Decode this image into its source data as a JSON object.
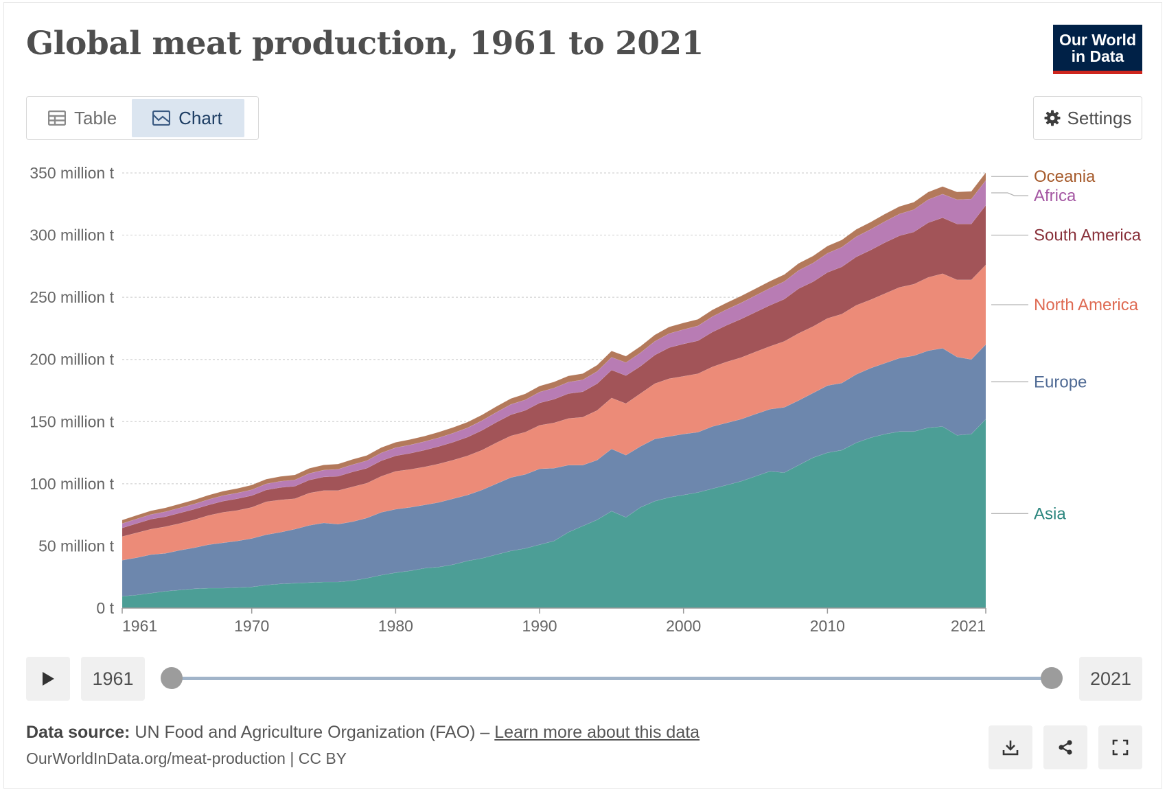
{
  "title": "Global meat production, 1961 to 2021",
  "logo": {
    "line1": "Our World",
    "line2": "in Data"
  },
  "tabs": [
    {
      "label": "Table",
      "icon": "table-icon"
    },
    {
      "label": "Chart",
      "icon": "chart-icon",
      "active": true
    }
  ],
  "settings_label": "Settings",
  "timeline": {
    "start": "1961",
    "end": "2021",
    "play_icon": "play-icon"
  },
  "footer": {
    "source_bold": "Data source:",
    "source_text": "UN Food and Agriculture Organization (FAO) –",
    "learn_more": "Learn more about this data",
    "url": "OurWorldInData.org/meat-production | CC BY"
  },
  "colors": {
    "Asia": "#4c9e96",
    "Europe": "#6d87ad",
    "North America": "#ec8b78",
    "South America": "#a25458",
    "Africa": "#b87cb4",
    "Oceania": "#b3795b"
  },
  "label_colors": {
    "Asia": "#2a857d",
    "Europe": "#4f6a94",
    "North America": "#de6a52",
    "South America": "#883039",
    "Africa": "#a456a2",
    "Oceania": "#a65b2c"
  },
  "chart_data": {
    "type": "area",
    "stacked": true,
    "title": "Global meat production, 1961 to 2021",
    "y_unit": "t",
    "ylim": [
      0,
      350000000
    ],
    "y_ticks": [
      {
        "value": 0,
        "label": "0 t"
      },
      {
        "value": 50000000,
        "label": "50 million t"
      },
      {
        "value": 100000000,
        "label": "100 million t"
      },
      {
        "value": 150000000,
        "label": "150 million t"
      },
      {
        "value": 200000000,
        "label": "200 million t"
      },
      {
        "value": 250000000,
        "label": "250 million t"
      },
      {
        "value": 300000000,
        "label": "300 million t"
      },
      {
        "value": 350000000,
        "label": "350 million t"
      }
    ],
    "x_ticks": [
      1961,
      1970,
      1980,
      1990,
      2000,
      2010,
      2021
    ],
    "xlim": [
      1961,
      2021
    ],
    "legend_position": "right",
    "x": [
      1961,
      1962,
      1963,
      1964,
      1965,
      1966,
      1967,
      1968,
      1969,
      1970,
      1971,
      1972,
      1973,
      1974,
      1975,
      1976,
      1977,
      1978,
      1979,
      1980,
      1981,
      1982,
      1983,
      1984,
      1985,
      1986,
      1987,
      1988,
      1989,
      1990,
      1991,
      1992,
      1993,
      1994,
      1995,
      1996,
      1997,
      1998,
      1999,
      2000,
      2001,
      2002,
      2003,
      2004,
      2005,
      2006,
      2007,
      2008,
      2009,
      2010,
      2011,
      2012,
      2013,
      2014,
      2015,
      2016,
      2017,
      2018,
      2019,
      2020,
      2021
    ],
    "series": [
      {
        "name": "Asia",
        "values": [
          9.5,
          10.5,
          12,
          13.5,
          14.5,
          15.5,
          16,
          16,
          16.5,
          17,
          18.5,
          19.5,
          20,
          20.5,
          21,
          21,
          22,
          24,
          26.5,
          28.5,
          30,
          32,
          33,
          35,
          38,
          40,
          43,
          46,
          48,
          51,
          54,
          61,
          66,
          71,
          78,
          73,
          81,
          86,
          89,
          91,
          93,
          96,
          99,
          102,
          106,
          110,
          109,
          115,
          121,
          125,
          127,
          133,
          137,
          140,
          142,
          142,
          145,
          146,
          139,
          140,
          152
        ]
      },
      {
        "name": "Europe",
        "values": [
          29,
          30,
          31,
          30.5,
          32,
          33,
          35,
          36.5,
          37.5,
          39,
          40.5,
          41.5,
          43.5,
          46,
          47.5,
          46.5,
          47.5,
          48.5,
          50.5,
          51,
          51,
          51,
          52,
          53,
          53,
          55,
          57,
          59,
          59.5,
          61,
          58.5,
          54,
          49,
          48,
          50,
          50,
          49,
          50,
          49,
          49,
          48.5,
          50,
          50,
          50,
          50,
          50,
          52.5,
          52,
          52,
          54,
          54,
          55,
          56,
          57,
          59,
          61,
          62,
          63,
          63,
          60,
          60
        ]
      },
      {
        "name": "North America",
        "values": [
          19,
          20,
          20.5,
          21.5,
          21.5,
          22.5,
          23.5,
          24.5,
          24.5,
          25,
          26.5,
          26,
          24.5,
          26,
          26,
          27,
          28,
          28,
          29,
          30.5,
          30.5,
          30.5,
          31,
          31,
          31.5,
          32,
          33,
          33.5,
          34,
          35,
          36.5,
          37.5,
          38.5,
          40,
          41,
          41.5,
          42.5,
          44.5,
          46.5,
          46.5,
          47,
          48,
          49,
          49.5,
          50,
          50.5,
          53,
          54,
          53.5,
          54,
          55.5,
          55.5,
          55,
          56,
          57,
          57.5,
          59,
          60,
          62,
          64,
          64
        ]
      },
      {
        "name": "South America",
        "values": [
          7,
          7.5,
          8,
          8,
          8.5,
          8.5,
          8.5,
          9,
          9.5,
          9.5,
          9.5,
          10,
          10,
          10.5,
          11,
          11.5,
          12,
          12,
          12.5,
          12.5,
          13,
          13.5,
          14,
          14.5,
          15,
          16,
          16.5,
          17,
          17.5,
          18,
          19,
          20,
          20.5,
          21.5,
          22.5,
          22.5,
          22,
          23,
          25,
          26,
          26.5,
          28,
          29.5,
          31,
          32,
          33,
          34,
          36,
          36,
          37,
          38,
          39,
          40,
          41,
          41.5,
          42,
          44,
          45,
          45,
          45,
          48
        ]
      },
      {
        "name": "Africa",
        "values": [
          3.5,
          3.7,
          3.8,
          4,
          4.1,
          4.2,
          4.4,
          4.5,
          4.6,
          4.7,
          4.9,
          5,
          5.1,
          5.3,
          5.5,
          5.7,
          5.9,
          6.1,
          6.3,
          6.5,
          6.7,
          6.9,
          7.1,
          7.3,
          7.5,
          7.8,
          8,
          8.3,
          8.5,
          8.8,
          9,
          9.3,
          9.6,
          9.9,
          10.2,
          10.5,
          10.8,
          11,
          11.3,
          11.6,
          12,
          12.4,
          12.7,
          13,
          13.4,
          13.8,
          14.2,
          14.6,
          15,
          15.4,
          15.8,
          16.2,
          16.6,
          17,
          17.5,
          18,
          18.5,
          19,
          19.5,
          20,
          20
        ]
      },
      {
        "name": "Oceania",
        "values": [
          2.8,
          2.9,
          3,
          3.1,
          3.2,
          3.3,
          3.4,
          3.5,
          3.6,
          3.7,
          3.8,
          3.9,
          4,
          4.1,
          4.1,
          4.2,
          4.2,
          4.2,
          4.3,
          4.3,
          4.4,
          4.4,
          4.5,
          4.5,
          4.6,
          4.6,
          4.7,
          4.7,
          4.8,
          4.8,
          4.9,
          4.9,
          5,
          5,
          5.1,
          5.1,
          5.2,
          5.2,
          5.3,
          5.3,
          5.3,
          5.4,
          5.4,
          5.5,
          5.5,
          5.6,
          5.6,
          5.7,
          5.7,
          5.8,
          5.8,
          5.9,
          5.9,
          6,
          6,
          6,
          6.1,
          6.1,
          6.2,
          6.2,
          6.3
        ]
      }
    ]
  }
}
